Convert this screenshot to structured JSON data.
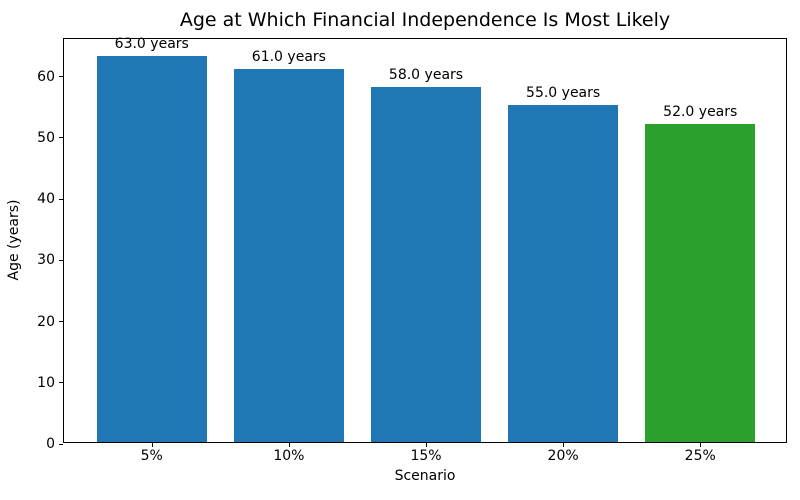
{
  "chart_data": {
    "type": "bar",
    "title": "Age at Which Financial Independence Is Most Likely",
    "xlabel": "Scenario",
    "ylabel": "Age (years)",
    "categories": [
      "5%",
      "10%",
      "15%",
      "20%",
      "25%"
    ],
    "values": [
      63.0,
      61.0,
      58.0,
      55.0,
      52.0
    ],
    "bar_labels": [
      "63.0 years",
      "61.0 years",
      "58.0 years",
      "55.0 years",
      "52.0 years"
    ],
    "bar_colors": [
      "#1f77b4",
      "#1f77b4",
      "#1f77b4",
      "#1f77b4",
      "#2ca02c"
    ],
    "yticks": [
      0,
      10,
      20,
      30,
      40,
      50,
      60
    ],
    "ylim": [
      0,
      66.15
    ],
    "grid": false,
    "legend_position": "none",
    "text_color": "#000000",
    "spine_color": "#000000",
    "background_color": "#ffffff"
  }
}
